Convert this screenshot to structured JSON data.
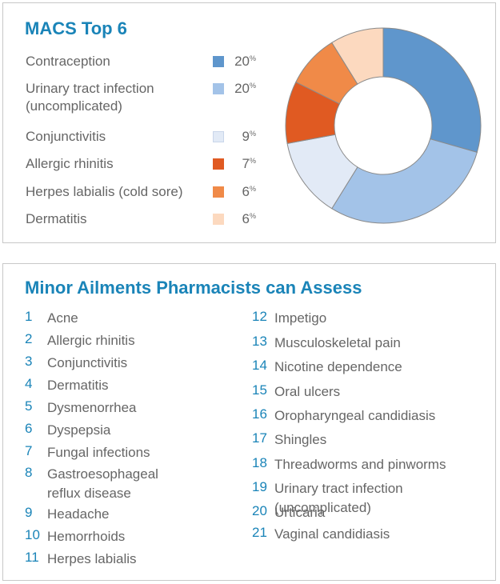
{
  "chart_data": {
    "type": "pie",
    "title": "MACS Top 6",
    "categories": [
      "Contraception",
      "Urinary tract infection\n(uncomplicated)",
      "Conjunctivitis",
      "Allergic rhinitis",
      "Herpes labialis (cold sore)",
      "Dermatitis"
    ],
    "values": [
      20,
      20,
      9,
      7,
      6,
      6
    ],
    "value_labels": [
      "20",
      "20",
      "9",
      "7",
      "6",
      "6"
    ],
    "value_suffix": "%",
    "colors": [
      "#5f96cc",
      "#a3c3e8",
      "#e2eaf6",
      "#e05a22",
      "#f08a48",
      "#fcd9bf"
    ],
    "legend_position": "left",
    "donut": true
  },
  "minor_ailments": {
    "title": "Minor Ailments Pharmacists can Assess",
    "items": [
      {
        "num": "1",
        "label": "Acne"
      },
      {
        "num": "2",
        "label": "Allergic rhinitis"
      },
      {
        "num": "3",
        "label": "Conjunctivitis"
      },
      {
        "num": "4",
        "label": "Dermatitis"
      },
      {
        "num": "5",
        "label": "Dysmenorrhea"
      },
      {
        "num": "6",
        "label": "Dyspepsia"
      },
      {
        "num": "7",
        "label": "Fungal infections"
      },
      {
        "num": "8",
        "label": "Gastroesophageal\nreflux disease"
      },
      {
        "num": "9",
        "label": "Headache"
      },
      {
        "num": "10",
        "label": "Hemorrhoids"
      },
      {
        "num": "11",
        "label": "Herpes labialis"
      },
      {
        "num": "12",
        "label": "Impetigo"
      },
      {
        "num": "13",
        "label": "Musculoskeletal pain"
      },
      {
        "num": "14",
        "label": "Nicotine dependence"
      },
      {
        "num": "15",
        "label": "Oral ulcers"
      },
      {
        "num": "16",
        "label": "Oropharyngeal candidiasis"
      },
      {
        "num": "17",
        "label": "Shingles"
      },
      {
        "num": "18",
        "label": "Threadworms and pinworms"
      },
      {
        "num": "19",
        "label": "Urinary tract infection\n(uncomplicated)"
      },
      {
        "num": "20",
        "label": "Urticaria"
      },
      {
        "num": "21",
        "label": "Vaginal candidiasis"
      }
    ]
  }
}
